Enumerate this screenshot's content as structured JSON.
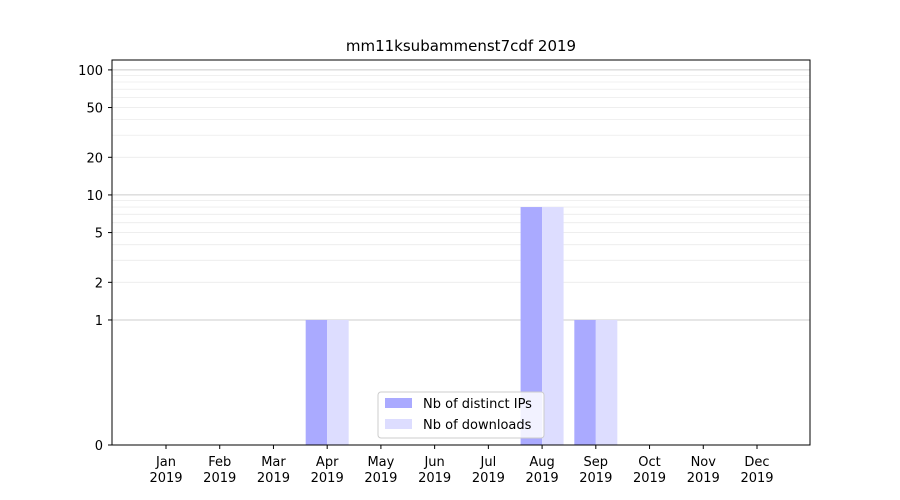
{
  "chart_data": {
    "type": "bar",
    "title": "mm11ksubammenst7cdf 2019",
    "xlabel": "",
    "ylabel": "",
    "y_scale": "symlog",
    "ylim": [
      0,
      120
    ],
    "y_ticks": [
      0,
      1,
      2,
      5,
      10,
      20,
      50,
      100
    ],
    "y_tick_labels": [
      "0",
      "1",
      "2",
      "5",
      "10",
      "20",
      "50",
      "100"
    ],
    "categories": [
      [
        "Jan",
        "2019"
      ],
      [
        "Feb",
        "2019"
      ],
      [
        "Mar",
        "2019"
      ],
      [
        "Apr",
        "2019"
      ],
      [
        "May",
        "2019"
      ],
      [
        "Jun",
        "2019"
      ],
      [
        "Jul",
        "2019"
      ],
      [
        "Aug",
        "2019"
      ],
      [
        "Sep",
        "2019"
      ],
      [
        "Oct",
        "2019"
      ],
      [
        "Nov",
        "2019"
      ],
      [
        "Dec",
        "2019"
      ]
    ],
    "series": [
      {
        "name": "Nb of distinct IPs",
        "color": "#aaaaff",
        "values": [
          0,
          0,
          0,
          1,
          0,
          0,
          0,
          8,
          1,
          0,
          0,
          0
        ]
      },
      {
        "name": "Nb of downloads",
        "color": "#ddddff",
        "values": [
          0,
          0,
          0,
          1,
          0,
          0,
          0,
          8,
          1,
          0,
          0,
          0
        ]
      }
    ],
    "grid": true,
    "legend_position": "bottom-center"
  }
}
